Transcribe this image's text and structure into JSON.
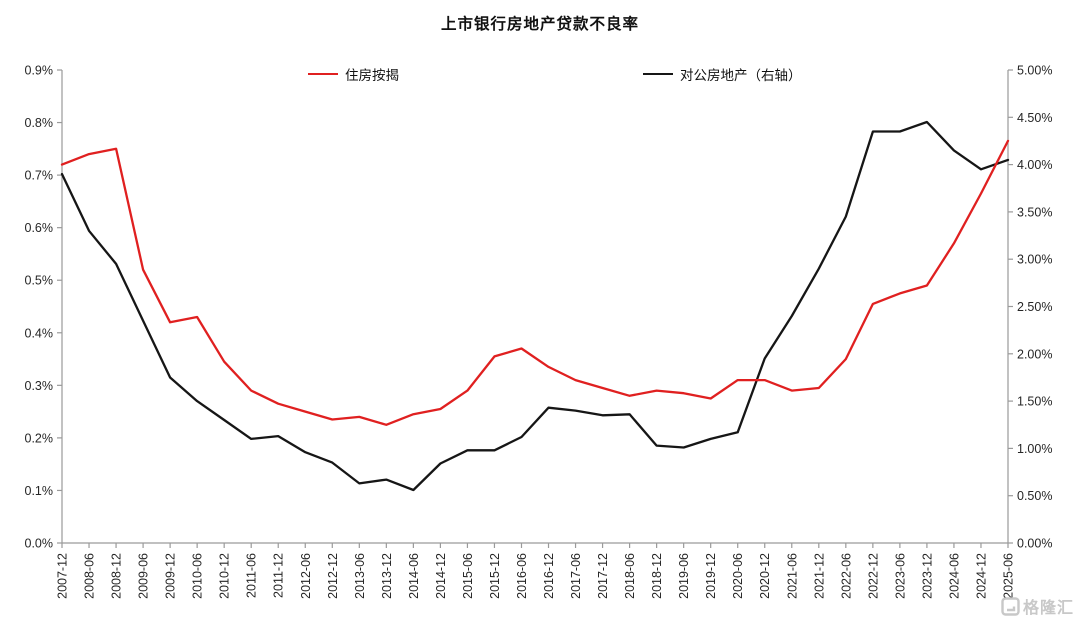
{
  "chart": {
    "title": "上市银行房地产贷款不良率",
    "legend": [
      {
        "label": "住房按揭",
        "color": "#e02020"
      },
      {
        "label": "对公房地产（右轴）",
        "color": "#161616"
      }
    ],
    "watermark": "格隆汇"
  },
  "chart_data": {
    "type": "line",
    "title": "上市银行房地产贷款不良率",
    "grid": false,
    "legend_position": "top",
    "categories": [
      "2007-12",
      "2008-06",
      "2008-12",
      "2009-06",
      "2009-12",
      "2010-06",
      "2010-12",
      "2011-06",
      "2011-12",
      "2012-06",
      "2012-12",
      "2013-06",
      "2013-12",
      "2014-06",
      "2014-12",
      "2015-06",
      "2015-12",
      "2016-06",
      "2016-12",
      "2017-06",
      "2017-12",
      "2018-06",
      "2018-12",
      "2019-06",
      "2019-12",
      "2020-06",
      "2020-12",
      "2021-06",
      "2021-12",
      "2022-06",
      "2022-12",
      "2023-06",
      "2023-12",
      "2024-06",
      "2024-12",
      "2025-06"
    ],
    "series": [
      {
        "name": "住房按揭",
        "axis": "left",
        "color": "#e02020",
        "unit": "%",
        "values": [
          0.72,
          0.74,
          0.75,
          0.52,
          0.42,
          0.43,
          0.345,
          0.29,
          0.265,
          0.25,
          0.235,
          0.24,
          0.225,
          0.245,
          0.255,
          0.29,
          0.355,
          0.37,
          0.335,
          0.31,
          0.295,
          0.28,
          0.29,
          0.285,
          0.275,
          0.31,
          0.31,
          0.29,
          0.295,
          0.35,
          0.455,
          0.475,
          0.49,
          0.57,
          0.665,
          0.765
        ]
      },
      {
        "name": "对公房地产（右轴）",
        "axis": "right",
        "color": "#161616",
        "unit": "%",
        "values": [
          3.9,
          3.3,
          2.95,
          2.35,
          1.75,
          1.5,
          1.3,
          1.1,
          1.13,
          0.96,
          0.85,
          0.63,
          0.67,
          0.56,
          0.84,
          0.98,
          0.98,
          1.12,
          1.43,
          1.4,
          1.35,
          1.36,
          1.03,
          1.01,
          1.1,
          1.17,
          1.95,
          2.4,
          2.9,
          3.45,
          4.35,
          4.35,
          4.45,
          4.15,
          3.95,
          4.05
        ]
      }
    ],
    "left_axis": {
      "min": 0,
      "max": 0.9,
      "ticks": [
        "0.0%",
        "0.1%",
        "0.2%",
        "0.3%",
        "0.4%",
        "0.5%",
        "0.6%",
        "0.7%",
        "0.8%",
        "0.9%"
      ]
    },
    "right_axis": {
      "min": 0,
      "max": 5,
      "ticks": [
        "0.00%",
        "0.50%",
        "1.00%",
        "1.50%",
        "2.00%",
        "2.50%",
        "3.00%",
        "3.50%",
        "4.00%",
        "4.50%",
        "5.00%"
      ]
    }
  }
}
